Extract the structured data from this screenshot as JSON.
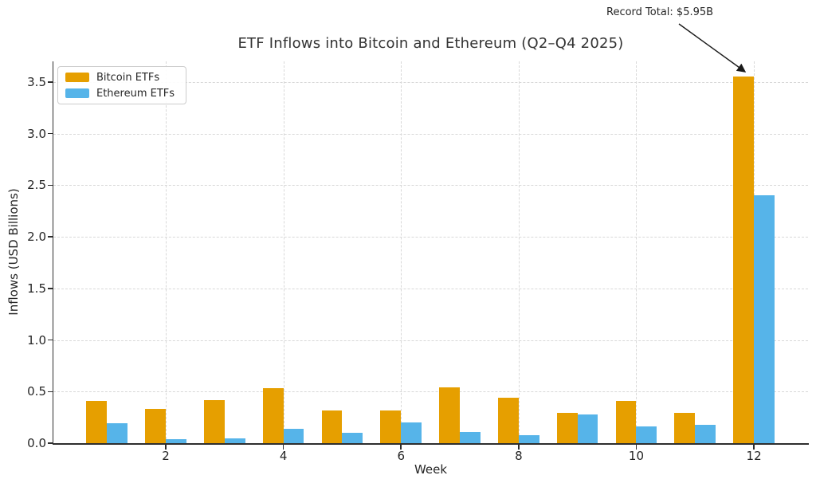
{
  "chart_data": {
    "type": "bar",
    "title": "ETF Inflows into Bitcoin and Ethereum (Q2–Q4 2025)",
    "xlabel": "Week",
    "ylabel": "Inflows (USD Billions)",
    "categories": [
      1,
      2,
      3,
      4,
      5,
      6,
      7,
      8,
      9,
      10,
      11,
      12
    ],
    "series": [
      {
        "name": "Bitcoin ETFs",
        "color": "#E69F00",
        "values": [
          0.41,
          0.33,
          0.42,
          0.53,
          0.32,
          0.32,
          0.54,
          0.44,
          0.29,
          0.41,
          0.29,
          3.55
        ]
      },
      {
        "name": "Ethereum ETFs",
        "color": "#56B4E9",
        "values": [
          0.19,
          0.04,
          0.05,
          0.14,
          0.1,
          0.2,
          0.11,
          0.08,
          0.28,
          0.16,
          0.18,
          2.4
        ]
      }
    ],
    "annotation": {
      "text": "Record Total: $5.95B",
      "target_week": 12
    },
    "yticks": [
      0.0,
      0.5,
      1.0,
      1.5,
      2.0,
      2.5,
      3.0,
      3.5
    ],
    "xticks": [
      2,
      4,
      6,
      8,
      10,
      12
    ],
    "ylim": [
      0,
      3.7
    ],
    "xlim": [
      0.09,
      12.92
    ],
    "bar_width": 0.35,
    "grid": true,
    "legend_position": "upper left"
  }
}
